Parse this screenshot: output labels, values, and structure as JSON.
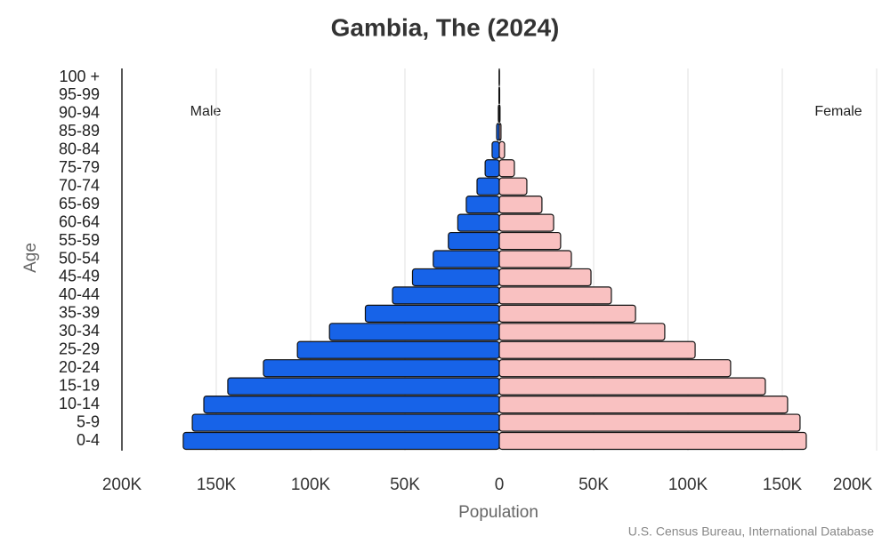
{
  "chart_data": {
    "type": "pyramid",
    "title": "Gambia, The (2024)",
    "x_label": "Population",
    "y_label": "Age",
    "source": "U.S. Census Bureau, International Database",
    "categories": [
      "0-4",
      "5-9",
      "10-14",
      "15-19",
      "20-24",
      "25-29",
      "30-34",
      "35-39",
      "40-44",
      "45-49",
      "50-54",
      "55-59",
      "60-64",
      "65-69",
      "70-74",
      "75-79",
      "80-84",
      "85-89",
      "90-94",
      "95-99",
      "100 +"
    ],
    "series": [
      {
        "name": "Male",
        "color": "#1763e8",
        "values": [
          167500,
          162700,
          156600,
          143900,
          125000,
          107000,
          90000,
          71000,
          56600,
          46000,
          35000,
          27000,
          22000,
          17500,
          11800,
          7500,
          3800,
          1400,
          500,
          200,
          100
        ]
      },
      {
        "name": "Female",
        "color": "#f9c1c1",
        "values": [
          162700,
          159400,
          152800,
          141000,
          122600,
          103800,
          87700,
          72200,
          59400,
          48600,
          38200,
          32500,
          28800,
          22600,
          14600,
          8000,
          2800,
          900,
          400,
          200,
          100
        ]
      }
    ],
    "xlim": [
      0,
      200000
    ],
    "xticks_male": [
      {
        "value": 200000,
        "label": "200K"
      },
      {
        "value": 150000,
        "label": "150K"
      },
      {
        "value": 100000,
        "label": "100K"
      },
      {
        "value": 50000,
        "label": "50K"
      }
    ],
    "xticks_female": [
      0,
      {
        "value": 50000,
        "label": "50K"
      },
      {
        "value": 100000,
        "label": "100K"
      },
      {
        "value": 150000,
        "label": "150K"
      },
      {
        "value": 200000,
        "label": "200K"
      }
    ],
    "grid": true
  }
}
